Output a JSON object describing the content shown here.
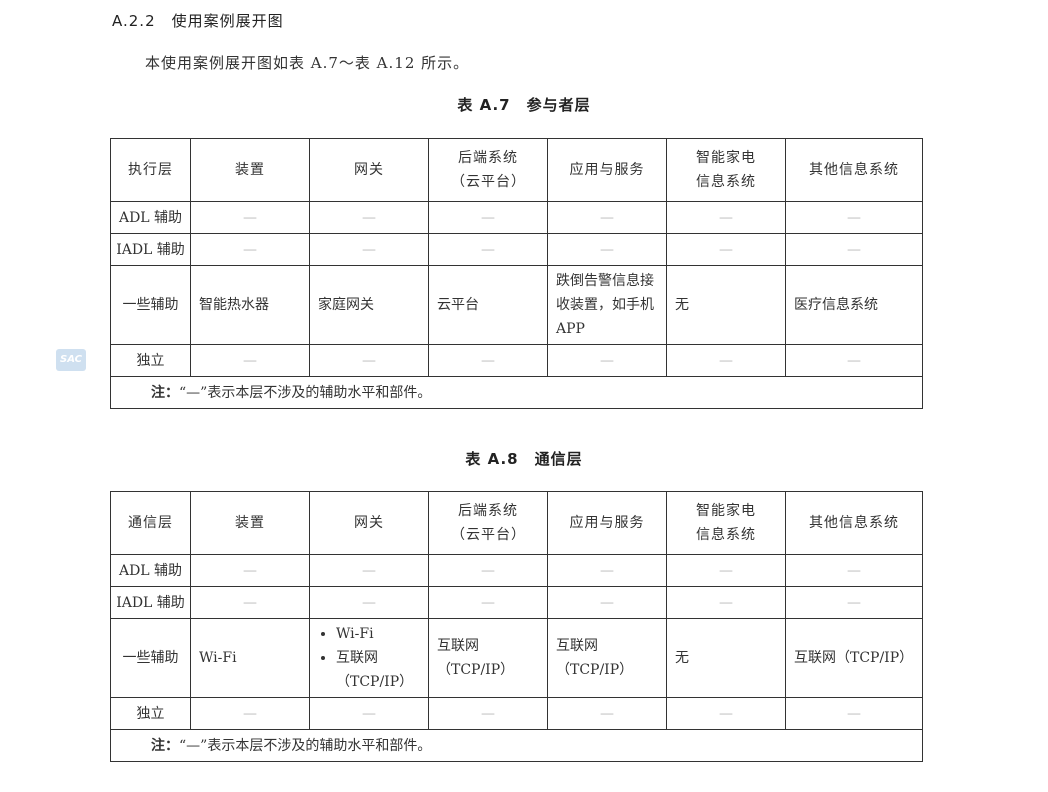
{
  "heading": "A.2.2　使用案例展开图",
  "intro": "本使用案例展开图如表 A.7～表 A.12 所示。",
  "watermark": "SAC",
  "tables": [
    {
      "caption": "表 A.7　参与者层",
      "headers": [
        "执行层",
        "装置",
        "网关",
        "后端系统（云平台）",
        "应用与服务",
        "智能家电信息系统",
        "其他信息系统"
      ],
      "rows": [
        [
          "ADL 辅助",
          "—",
          "—",
          "—",
          "—",
          "—",
          "—"
        ],
        [
          "IADL 辅助",
          "—",
          "—",
          "—",
          "—",
          "—",
          "—"
        ],
        [
          "一些辅助",
          "智能热水器",
          "家庭网关",
          "云平台",
          "跌倒告警信息接收装置，如手机 APP",
          "无",
          "医疗信息系统"
        ],
        [
          "独立",
          "—",
          "—",
          "—",
          "—",
          "—",
          "—"
        ]
      ],
      "note_label": "注：",
      "note": "“—”表示本层不涉及的辅助水平和部件。"
    },
    {
      "caption": "表 A.8　通信层",
      "headers": [
        "通信层",
        "装置",
        "网关",
        "后端系统（云平台）",
        "应用与服务",
        "智能家电信息系统",
        "其他信息系统"
      ],
      "rows": [
        [
          "ADL 辅助",
          "—",
          "—",
          "—",
          "—",
          "—",
          "—"
        ],
        [
          "IADL 辅助",
          "—",
          "—",
          "—",
          "—",
          "—",
          "—"
        ],
        [
          "一些辅助",
          "Wi-Fi",
          [
            "Wi-Fi",
            "互联网（TCP/IP）"
          ],
          "互联网（TCP/IP）",
          "互联网（TCP/IP）",
          "无",
          "互联网（TCP/IP）"
        ],
        [
          "独立",
          "—",
          "—",
          "—",
          "—",
          "—",
          "—"
        ]
      ],
      "note_label": "注：",
      "note": "“—”表示本层不涉及的辅助水平和部件。"
    }
  ]
}
